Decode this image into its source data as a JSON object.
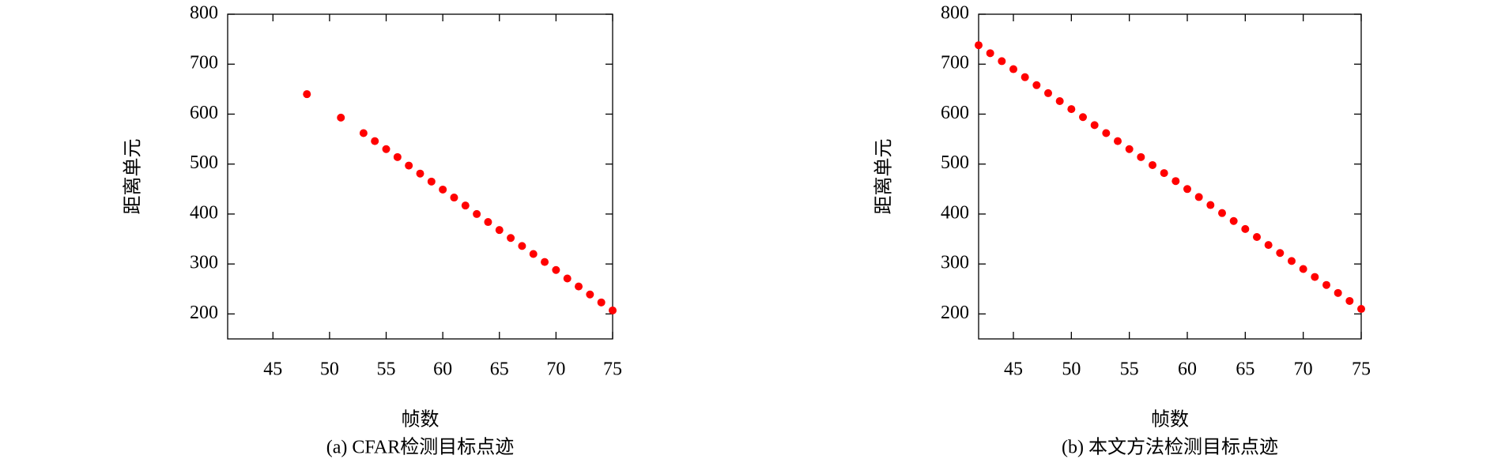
{
  "chart_data": [
    {
      "type": "scatter",
      "caption": "(a) CFAR检测目标点迹",
      "xlabel": "帧数",
      "ylabel": "距离单元",
      "color": "#ff0000",
      "x": [
        48,
        51,
        53,
        54,
        55,
        56,
        57,
        58,
        59,
        60,
        61,
        62,
        63,
        64,
        65,
        66,
        67,
        68,
        69,
        70,
        71,
        72,
        73,
        74,
        75
      ],
      "values": [
        640,
        593,
        562,
        546,
        530,
        514,
        497,
        481,
        465,
        449,
        433,
        417,
        400,
        384,
        368,
        352,
        336,
        320,
        304,
        288,
        271,
        255,
        239,
        223,
        207
      ],
      "xlim": [
        41,
        75
      ],
      "xticks": [
        45,
        50,
        55,
        60,
        65,
        70,
        75
      ],
      "ylim": [
        150,
        800
      ],
      "yticks": [
        200,
        300,
        400,
        500,
        600,
        700,
        800
      ]
    },
    {
      "type": "scatter",
      "caption": "(b) 本文方法检测目标点迹",
      "xlabel": "帧数",
      "ylabel": "距离单元",
      "color": "#ff0000",
      "x": [
        42,
        43,
        44,
        45,
        46,
        47,
        48,
        49,
        50,
        51,
        52,
        53,
        54,
        55,
        56,
        57,
        58,
        59,
        60,
        61,
        62,
        63,
        64,
        65,
        66,
        67,
        68,
        69,
        70,
        71,
        72,
        73,
        74,
        75
      ],
      "values": [
        738,
        722,
        706,
        690,
        674,
        658,
        642,
        626,
        610,
        594,
        578,
        562,
        546,
        530,
        514,
        498,
        482,
        466,
        450,
        434,
        418,
        402,
        386,
        370,
        354,
        338,
        322,
        306,
        290,
        274,
        258,
        242,
        226,
        210
      ],
      "xlim": [
        42,
        75
      ],
      "xticks": [
        45,
        50,
        55,
        60,
        65,
        70,
        75
      ],
      "ylim": [
        150,
        800
      ],
      "yticks": [
        200,
        300,
        400,
        500,
        600,
        700,
        800
      ]
    }
  ]
}
